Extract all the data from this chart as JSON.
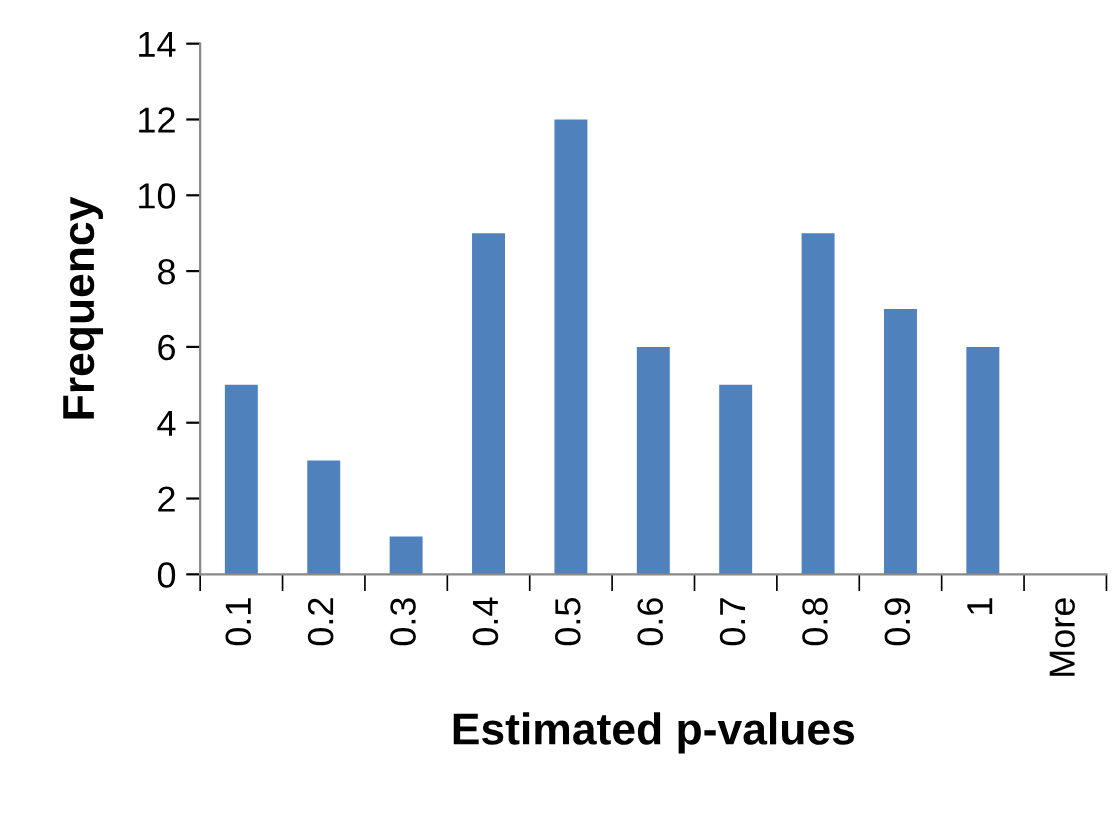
{
  "chart_data": {
    "type": "bar",
    "xlabel": "Estimated p-values",
    "ylabel": "Frequency",
    "categories": [
      "0.1",
      "0.2",
      "0.3",
      "0.4",
      "0.5",
      "0.6",
      "0.7",
      "0.8",
      "0.9",
      "1",
      "More"
    ],
    "values": [
      5,
      3,
      1,
      9,
      12,
      6,
      5,
      9,
      7,
      6,
      0
    ],
    "color": "#4f81bd",
    "ylim": [
      0,
      14
    ],
    "yticks": [
      0,
      2,
      4,
      6,
      8,
      10,
      12,
      14
    ],
    "grid": false,
    "legend": false
  }
}
